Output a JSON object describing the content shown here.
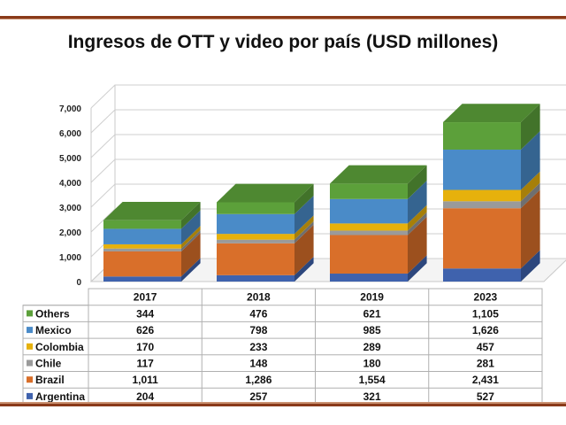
{
  "title": "Ingresos de OTT y video por país (USD millones)",
  "chart_data": {
    "type": "bar",
    "stacked": true,
    "style": "3d",
    "categories": [
      "2017",
      "2018",
      "2019",
      "2023"
    ],
    "series": [
      {
        "name": "Argentina",
        "color": "#3f62ad",
        "values": [
          204,
          257,
          321,
          527
        ],
        "labels": [
          "204",
          "257",
          "321",
          "527"
        ]
      },
      {
        "name": "Brazil",
        "color": "#d96f2a",
        "values": [
          1011,
          1286,
          1554,
          2431
        ],
        "labels": [
          "1,011",
          "1,286",
          "1,554",
          "2,431"
        ]
      },
      {
        "name": "Chile",
        "color": "#9a9a9a",
        "values": [
          117,
          148,
          180,
          281
        ],
        "labels": [
          "117",
          "148",
          "180",
          "281"
        ]
      },
      {
        "name": "Colombia",
        "color": "#e6b10c",
        "values": [
          170,
          233,
          289,
          457
        ],
        "labels": [
          "170",
          "233",
          "289",
          "457"
        ]
      },
      {
        "name": "Mexico",
        "color": "#4a8bc8",
        "values": [
          626,
          798,
          985,
          1626
        ],
        "labels": [
          "626",
          "798",
          "985",
          "1,626"
        ]
      },
      {
        "name": "Others",
        "color": "#5ca03a",
        "values": [
          344,
          476,
          621,
          1105
        ],
        "labels": [
          "344",
          "476",
          "621",
          "1,105"
        ]
      }
    ],
    "ylim": [
      0,
      7000
    ],
    "yticks": [
      "0",
      "1,000",
      "2,000",
      "3,000",
      "4,000",
      "5,000",
      "6,000",
      "7,000"
    ],
    "grid": true,
    "data_table": true,
    "xlabel": "",
    "ylabel": ""
  },
  "frame_color": "#8a3a1a"
}
